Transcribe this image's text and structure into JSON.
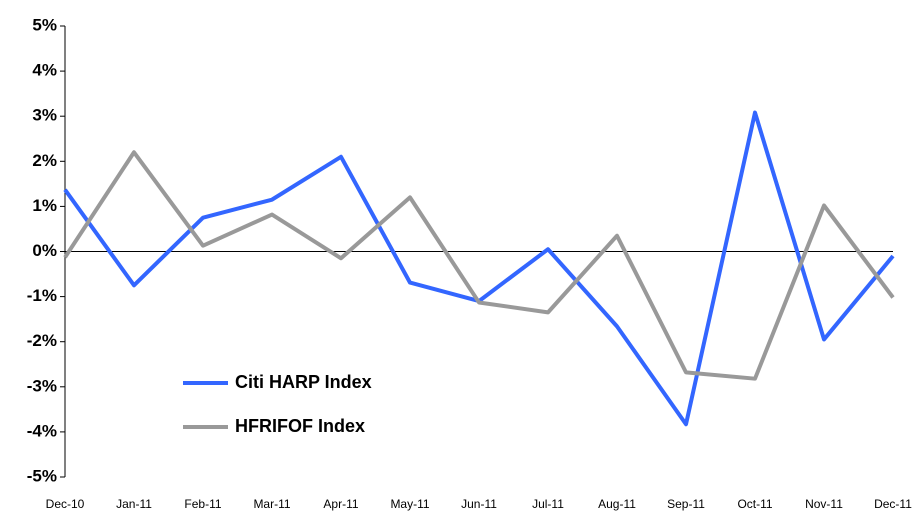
{
  "chart_data": {
    "type": "line",
    "categories": [
      "Dec-10",
      "Jan-11",
      "Feb-11",
      "Mar-11",
      "Apr-11",
      "May-11",
      "Jun-11",
      "Jul-11",
      "Aug-11",
      "Sep-11",
      "Oct-11",
      "Nov-11",
      "Dec-11"
    ],
    "series": [
      {
        "name": "Citi HARP Index",
        "color": "#3366ff",
        "values": [
          1.37,
          -0.75,
          0.75,
          1.15,
          2.1,
          -0.69,
          -1.1,
          0.05,
          -1.66,
          -3.83,
          3.08,
          -1.95,
          -0.1
        ]
      },
      {
        "name": "HFRIFOF Index",
        "color": "#999999",
        "values": [
          -0.13,
          2.2,
          0.13,
          0.82,
          -0.15,
          1.2,
          -1.13,
          -1.35,
          0.35,
          -2.68,
          -2.82,
          1.02,
          -1.02
        ]
      }
    ],
    "ylim": [
      -5,
      5
    ],
    "yticks": [
      {
        "value": -5,
        "label": "-5%"
      },
      {
        "value": -4,
        "label": "-4%"
      },
      {
        "value": -3,
        "label": "-3%"
      },
      {
        "value": -2,
        "label": "-2%"
      },
      {
        "value": -1,
        "label": "-1%"
      },
      {
        "value": 0,
        "label": "0%"
      },
      {
        "value": 1,
        "label": "1%"
      },
      {
        "value": 2,
        "label": "2%"
      },
      {
        "value": 3,
        "label": "3%"
      },
      {
        "value": 4,
        "label": "4%"
      },
      {
        "value": 5,
        "label": "5%"
      }
    ],
    "legend": "lower left"
  }
}
